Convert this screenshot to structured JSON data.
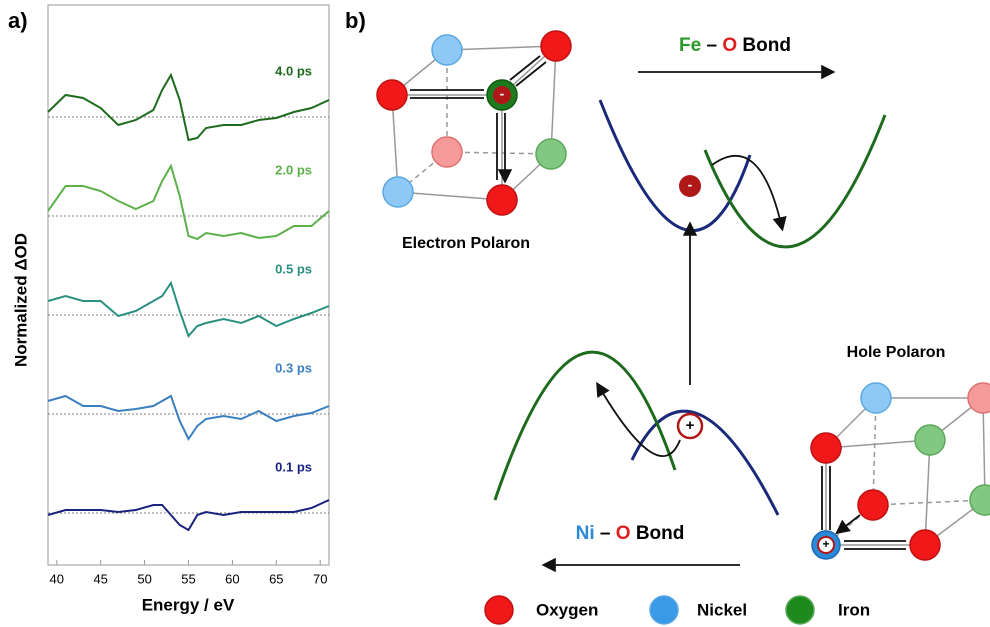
{
  "panel_labels": [
    "a)",
    "b)"
  ],
  "chart_data": {
    "type": "line",
    "x_label": "Energy / eV",
    "y_label": "Normalized ΔOD",
    "xlim": [
      39,
      71
    ],
    "xticks": [
      40,
      45,
      50,
      55,
      60,
      65,
      70
    ],
    "x": [
      39,
      41,
      43,
      45,
      47,
      49,
      51,
      52,
      53,
      54,
      55,
      56,
      57,
      59,
      61,
      63,
      65,
      67,
      69,
      71
    ],
    "series": [
      {
        "name": "4.0 ps",
        "color": "#1e6b1e",
        "values": [
          0.1,
          0.44,
          0.38,
          0.18,
          -0.16,
          -0.06,
          0.14,
          0.54,
          0.84,
          0.34,
          -0.46,
          -0.42,
          -0.22,
          -0.16,
          -0.16,
          -0.06,
          -0.02,
          0.1,
          0.18,
          0.34
        ]
      },
      {
        "name": "2.0 ps",
        "color": "#5cb04a",
        "values": [
          0.1,
          0.6,
          0.6,
          0.5,
          0.3,
          0.14,
          0.3,
          0.7,
          1.0,
          0.4,
          -0.4,
          -0.46,
          -0.34,
          -0.4,
          -0.34,
          -0.44,
          -0.4,
          -0.2,
          -0.2,
          0.1
        ]
      },
      {
        "name": "0.5 ps",
        "color": "#2a9080",
        "values": [
          0.28,
          0.38,
          0.28,
          0.28,
          -0.02,
          0.08,
          0.28,
          0.38,
          0.64,
          0.08,
          -0.42,
          -0.22,
          -0.16,
          -0.08,
          -0.16,
          -0.02,
          -0.22,
          -0.08,
          0.04,
          0.18
        ]
      },
      {
        "name": "0.3 ps",
        "color": "#3a7fc0",
        "values": [
          0.26,
          0.36,
          0.16,
          0.16,
          0.06,
          0.1,
          0.16,
          0.26,
          0.36,
          -0.14,
          -0.5,
          -0.24,
          -0.1,
          -0.04,
          -0.1,
          0.06,
          -0.14,
          -0.04,
          0.02,
          0.16
        ]
      },
      {
        "name": "0.1 ps",
        "color": "#1a237e",
        "values": [
          -0.04,
          0.06,
          0.06,
          0.06,
          0.02,
          0.06,
          0.16,
          0.16,
          -0.04,
          -0.24,
          -0.34,
          -0.04,
          0.02,
          -0.04,
          0.02,
          0.02,
          0.02,
          0.02,
          0.1,
          0.26
        ]
      }
    ]
  },
  "diagram": {
    "fe_o_bond": [
      "Fe",
      "–",
      "O",
      "Bond"
    ],
    "ni_o_bond": [
      "Ni",
      "–",
      "O",
      "Bond"
    ],
    "electron_polaron": "Electron Polaron",
    "hole_polaron": "Hole Polaron",
    "electron": "-",
    "hole": "+",
    "legend": [
      "Oxygen",
      "Nickel",
      "Iron"
    ]
  }
}
